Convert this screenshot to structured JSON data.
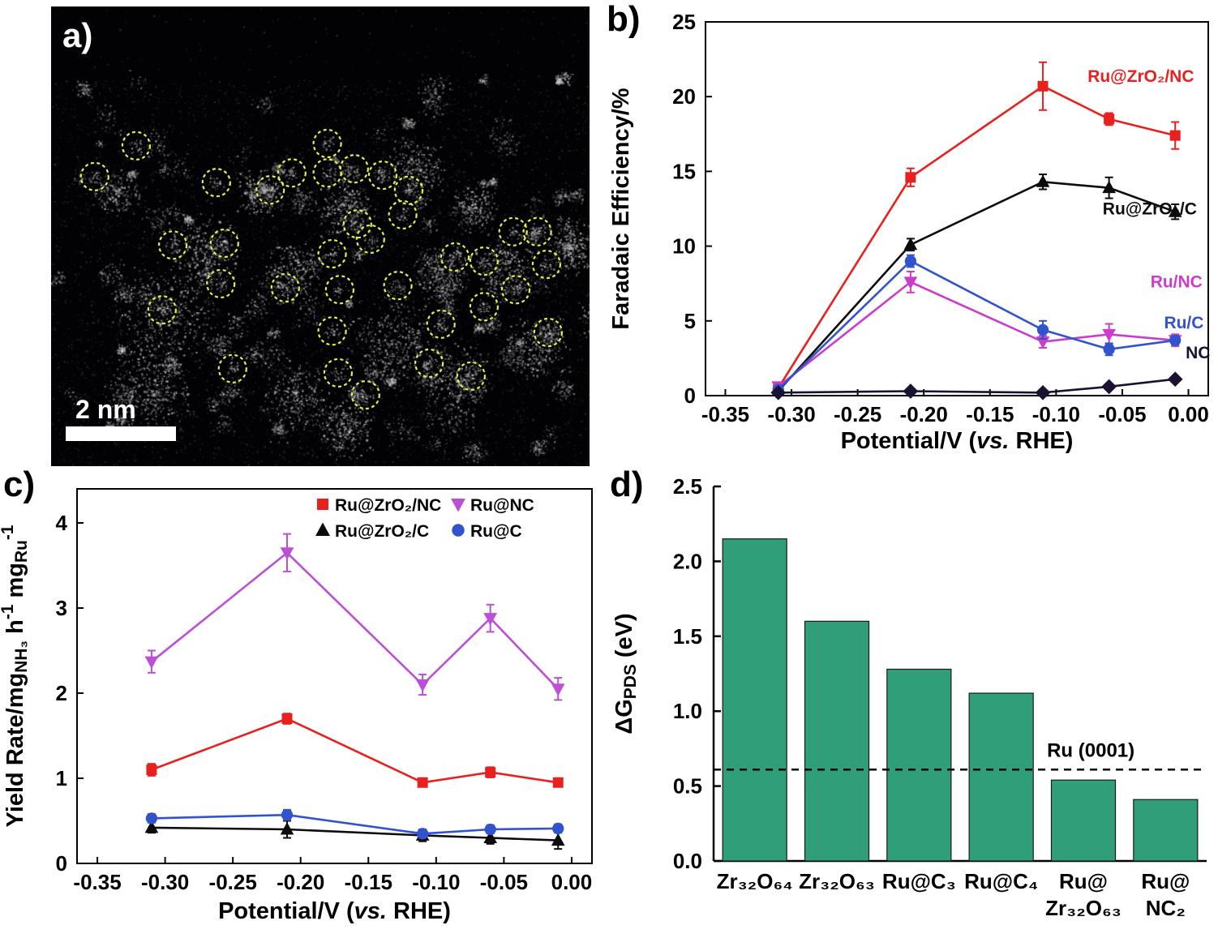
{
  "figure": {
    "panel_labels": {
      "a": "a)",
      "b": "b)",
      "c": "c)",
      "d": "d)"
    }
  },
  "panel_a": {
    "scale_bar_label": "2 nm",
    "circle_color": "#e3ee54",
    "circles": [
      [
        0.158,
        0.303
      ],
      [
        0.081,
        0.37
      ],
      [
        0.307,
        0.383
      ],
      [
        0.407,
        0.399
      ],
      [
        0.447,
        0.362
      ],
      [
        0.513,
        0.298
      ],
      [
        0.513,
        0.362
      ],
      [
        0.563,
        0.353
      ],
      [
        0.616,
        0.367
      ],
      [
        0.664,
        0.4
      ],
      [
        0.653,
        0.453
      ],
      [
        0.569,
        0.473
      ],
      [
        0.522,
        0.538
      ],
      [
        0.593,
        0.506
      ],
      [
        0.226,
        0.519
      ],
      [
        0.322,
        0.515
      ],
      [
        0.315,
        0.603
      ],
      [
        0.435,
        0.612
      ],
      [
        0.536,
        0.616
      ],
      [
        0.644,
        0.607
      ],
      [
        0.75,
        0.545
      ],
      [
        0.804,
        0.554
      ],
      [
        0.858,
        0.49
      ],
      [
        0.903,
        0.49
      ],
      [
        0.92,
        0.561
      ],
      [
        0.863,
        0.616
      ],
      [
        0.804,
        0.653
      ],
      [
        0.724,
        0.691
      ],
      [
        0.206,
        0.66
      ],
      [
        0.337,
        0.788
      ],
      [
        0.522,
        0.706
      ],
      [
        0.533,
        0.797
      ],
      [
        0.702,
        0.776
      ],
      [
        0.78,
        0.804
      ],
      [
        0.923,
        0.709
      ],
      [
        0.584,
        0.845
      ]
    ]
  },
  "chart_data": [
    {
      "id": "b",
      "type": "line",
      "xlabel": "Potential/V (*vs.* RHE)",
      "ylabel": "Faradaic Efficiency/%",
      "xlim": [
        -0.365,
        0.015
      ],
      "ylim": [
        0,
        25
      ],
      "xticks": {
        "values": [
          -0.35,
          -0.3,
          -0.25,
          -0.2,
          -0.15,
          -0.1,
          -0.05,
          0.0
        ],
        "labels": [
          "-0.35",
          "-0.30",
          "-0.25",
          "-0.20",
          "-0.15",
          "-0.10",
          "-0.05",
          "0.00"
        ]
      },
      "yticks": {
        "values": [
          0,
          5,
          10,
          15,
          20,
          25
        ],
        "labels": [
          "0",
          "5",
          "10",
          "15",
          "20",
          "25"
        ]
      },
      "x": [
        -0.31,
        -0.21,
        -0.11,
        -0.06,
        -0.01
      ],
      "series": [
        {
          "name": "Ru@ZrO₂/NC",
          "color": "#e8201e",
          "marker": "square",
          "values": [
            0.5,
            14.6,
            20.7,
            18.5,
            17.4
          ],
          "errors": [
            0.3,
            0.6,
            1.6,
            0.4,
            0.9
          ]
        },
        {
          "name": "Ru@ZrO₂/C",
          "color": "#0c0c0c",
          "marker": "triangle-up",
          "values": [
            0.3,
            10.1,
            14.3,
            13.9,
            12.3
          ],
          "errors": [
            0.2,
            0.4,
            0.5,
            0.7,
            0.5
          ]
        },
        {
          "name": "Ru/NC",
          "color": "#cb3ccb",
          "marker": "triangle-down",
          "values": [
            0.6,
            7.6,
            3.6,
            4.1,
            3.7
          ],
          "errors": [
            0.2,
            0.7,
            0.4,
            0.7,
            0.4
          ]
        },
        {
          "name": "Ru/C",
          "color": "#3153cc",
          "marker": "circle",
          "values": [
            0.4,
            9.0,
            4.4,
            3.1,
            3.7
          ],
          "errors": [
            0.2,
            0.4,
            0.6,
            0.4,
            0.3
          ]
        },
        {
          "name": "NC",
          "color": "#1b1133",
          "marker": "diamond",
          "values": [
            0.2,
            0.3,
            0.2,
            0.6,
            1.1
          ],
          "errors": [
            0.1,
            0.1,
            0.1,
            0.1,
            0.15
          ]
        }
      ],
      "annotations": [
        {
          "text": "Ru@ZrO₂/NC",
          "color": "#e8201e",
          "fx": 0.76,
          "fy": 0.16
        },
        {
          "text": "Ru@ZrO₂/C",
          "color": "#0c0c0c",
          "fx": 0.79,
          "fy": 0.515
        },
        {
          "text": "Ru/NC",
          "color": "#cb3ccb",
          "fx": 0.885,
          "fy": 0.71
        },
        {
          "text": "Ru/C",
          "color": "#3153cc",
          "fx": 0.912,
          "fy": 0.82
        },
        {
          "text": "NC",
          "color": "#1b1133",
          "fx": 0.955,
          "fy": 0.9
        }
      ]
    },
    {
      "id": "c",
      "type": "line",
      "xlabel": "Potential/V (*vs.* RHE)",
      "ylabel": "Yield Rate/mg_{NH₃} h^{-1} mg_{Ru}^{-1}",
      "xlim": [
        -0.365,
        0.015
      ],
      "ylim": [
        0,
        4.4
      ],
      "xticks": {
        "values": [
          -0.35,
          -0.3,
          -0.25,
          -0.2,
          -0.15,
          -0.1,
          -0.05,
          0.0
        ],
        "labels": [
          "-0.35",
          "-0.30",
          "-0.25",
          "-0.20",
          "-0.15",
          "-0.10",
          "-0.05",
          "0.00"
        ]
      },
      "yticks": {
        "values": [
          0,
          1,
          2,
          3,
          4
        ],
        "labels": [
          "0",
          "1",
          "2",
          "3",
          "4"
        ]
      },
      "x": [
        -0.31,
        -0.21,
        -0.11,
        -0.06,
        -0.01
      ],
      "series": [
        {
          "name": "Ru@ZrO₂/NC",
          "color": "#e8201e",
          "marker": "square",
          "values": [
            1.1,
            1.7,
            0.95,
            1.07,
            0.95
          ],
          "errors": [
            0.07,
            0.06,
            0.05,
            0.06,
            0.05
          ]
        },
        {
          "name": "Ru@NC",
          "color": "#bb4fd6",
          "marker": "triangle-down",
          "values": [
            2.37,
            3.65,
            2.1,
            2.88,
            2.05
          ],
          "errors": [
            0.13,
            0.22,
            0.12,
            0.16,
            0.13
          ]
        },
        {
          "name": "Ru@ZrO₂/C",
          "color": "#0c0c0c",
          "marker": "triangle-up",
          "values": [
            0.42,
            0.4,
            0.33,
            0.3,
            0.27
          ],
          "errors": [
            0.06,
            0.1,
            0.07,
            0.07,
            0.1
          ]
        },
        {
          "name": "Ru@C",
          "color": "#3153cc",
          "marker": "circle",
          "values": [
            0.53,
            0.57,
            0.35,
            0.4,
            0.41
          ],
          "errors": [
            0.05,
            0.06,
            0.05,
            0.05,
            0.05
          ]
        }
      ],
      "annotations": []
    },
    {
      "id": "d",
      "type": "bar",
      "ylabel": "ΔG_{PDS} (eV)",
      "ylim": [
        0,
        2.5
      ],
      "yticks": {
        "values": [
          0,
          0.5,
          1,
          1.5,
          2,
          2.5
        ],
        "labels": [
          "0.0",
          "0.5",
          "1.0",
          "1.5",
          "2.0",
          "2.5"
        ]
      },
      "categories": [
        [
          "Zr₃₂O₆₄"
        ],
        [
          "Zr₃₂O₆₃"
        ],
        [
          "Ru@C₃"
        ],
        [
          "Ru@C₄"
        ],
        [
          "Ru@",
          "Zr₃₂O₆₃"
        ],
        [
          "Ru@",
          "NC₂"
        ]
      ],
      "values": [
        2.15,
        1.6,
        1.28,
        1.12,
        0.54,
        0.41
      ],
      "bar_color": "#2f9e79",
      "ref_line": {
        "y": 0.61,
        "label": "Ru (0001)"
      }
    }
  ]
}
